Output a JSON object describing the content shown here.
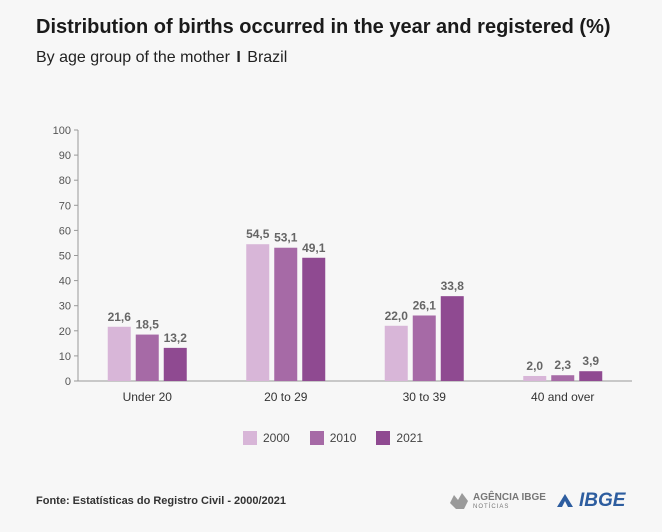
{
  "header": {
    "title": "Distribution of births occurred in the year and registered (%)",
    "subtitle_main": "By age group of the mother",
    "subtitle_sep": "I",
    "subtitle_place": "Brazil"
  },
  "footer": {
    "source": "Fonte: Estatísticas do Registro Civil - 2000/2021",
    "agencia_logo_text": "AGÊNCIA IBGE",
    "agencia_logo_sub": "NOTÍCIAS",
    "ibge_logo_text": "IBGE"
  },
  "colors": {
    "s2000": "#d8b6d8",
    "s2010": "#a66aa6",
    "s2021": "#8f4a91"
  },
  "chart_data": {
    "type": "bar",
    "title": "Distribution of births occurred in the year and registered (%)",
    "subtitle": "By age group of the mother I Brazil",
    "categories": [
      "Under 20",
      "20 to 29",
      "30 to 39",
      "40 and over"
    ],
    "series": [
      {
        "name": "2000",
        "values": [
          21.6,
          54.5,
          22.0,
          2.0
        ],
        "labels": [
          "21,6",
          "54,5",
          "22,0",
          "2,0"
        ],
        "color": "#d8b6d8"
      },
      {
        "name": "2010",
        "values": [
          18.5,
          53.1,
          26.1,
          2.3
        ],
        "labels": [
          "18,5",
          "53,1",
          "26,1",
          "2,3"
        ],
        "color": "#a66aa6"
      },
      {
        "name": "2021",
        "values": [
          13.2,
          49.1,
          33.8,
          3.9
        ],
        "labels": [
          "13,2",
          "49,1",
          "33,8",
          "3,9"
        ],
        "color": "#8f4a91"
      }
    ],
    "ylim": [
      0,
      100
    ],
    "yticks": [
      0,
      10,
      20,
      30,
      40,
      50,
      60,
      70,
      80,
      90,
      100
    ],
    "xlabel": "",
    "ylabel": "",
    "grid": false,
    "legend": "bottom-center"
  }
}
